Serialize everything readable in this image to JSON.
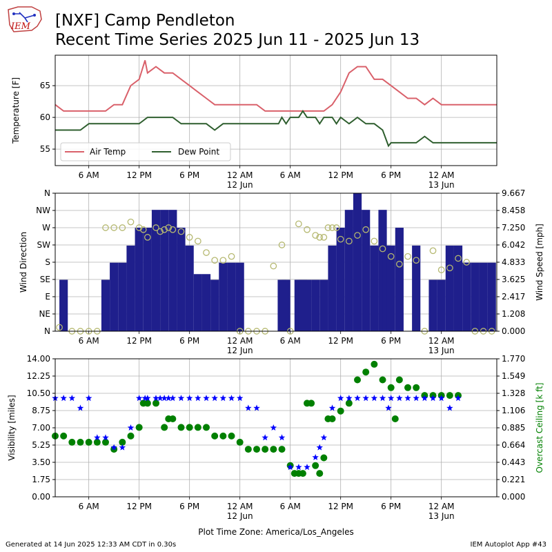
{
  "header": {
    "logo_text": "IEM",
    "title_line1": "[NXF] Camp Pendleton",
    "title_line2": "Recent Time Series 2025 Jun 11 - 2025 Jun 13"
  },
  "footer": {
    "left": "Generated at 14 Jun 2025 12:33 AM CDT in 0.30s",
    "right": "IEM Autoplot App #43",
    "timezone_label": "Plot Time Zone: America/Los_Angeles"
  },
  "x_axis": {
    "range": [
      2,
      54.6
    ],
    "ticks": [
      {
        "h": 6,
        "label": "6 AM",
        "sub": ""
      },
      {
        "h": 12,
        "label": "12 PM",
        "sub": ""
      },
      {
        "h": 18,
        "label": "6 PM",
        "sub": ""
      },
      {
        "h": 24,
        "label": "12 AM",
        "sub": "12 Jun"
      },
      {
        "h": 30,
        "label": "6 AM",
        "sub": ""
      },
      {
        "h": 36,
        "label": "12 PM",
        "sub": ""
      },
      {
        "h": 42,
        "label": "6 PM",
        "sub": ""
      },
      {
        "h": 48,
        "label": "12 AM",
        "sub": "13 Jun"
      }
    ],
    "unit_note": "x values are hours after 12 AM, 11 Jun 2025 (America/Los_Angeles)"
  },
  "colors": {
    "air_temp": "#d9606a",
    "dew_point": "#2e5e2e",
    "wind_speed": "#1f1f8c",
    "wind_dir": "#b5b870",
    "visibility": "#0000ff",
    "ceiling": "#008000"
  },
  "chart_data": [
    {
      "type": "line",
      "ylabel": "Temperature [F]",
      "ylim": [
        52.4,
        69.8
      ],
      "yticks": [
        55,
        60,
        65
      ],
      "grid": true,
      "legend_position": "lower-left",
      "series": [
        {
          "name": "Air Temp",
          "x": [
            2,
            3,
            4,
            5,
            6,
            7,
            8,
            9,
            10,
            11,
            12,
            12.7,
            13,
            14,
            15,
            16,
            17,
            18,
            19,
            20,
            21,
            22,
            23,
            24,
            25,
            26,
            27,
            28,
            29,
            30,
            31,
            32,
            33,
            34,
            35,
            36,
            37,
            38,
            39,
            40,
            41,
            42,
            43,
            44,
            45,
            46,
            47,
            48,
            49,
            50,
            51,
            52,
            53,
            54,
            54.6
          ],
          "y": [
            62,
            61,
            61,
            61,
            61,
            61,
            61,
            62,
            62,
            65,
            66,
            69,
            67,
            68,
            67,
            67,
            66,
            65,
            64,
            63,
            62,
            62,
            62,
            62,
            62,
            62,
            61,
            61,
            61,
            61,
            61,
            61,
            61,
            61,
            62,
            64,
            67,
            68,
            68,
            66,
            66,
            65,
            64,
            63,
            63,
            62,
            63,
            62,
            62,
            62,
            62,
            62,
            62,
            62,
            62
          ]
        },
        {
          "name": "Dew Point",
          "x": [
            2,
            3,
            4,
            5,
            6,
            7,
            8,
            9,
            10,
            11,
            12,
            13,
            14,
            15,
            16,
            17,
            18,
            19,
            20,
            21,
            22,
            23,
            24,
            25,
            26,
            27,
            28,
            28.6,
            29,
            29.5,
            30,
            31,
            31.5,
            32,
            33,
            33.5,
            34,
            35,
            35.5,
            36,
            37,
            38,
            39,
            40,
            41,
            41.7,
            42,
            43,
            44,
            45,
            46,
            47,
            48,
            49,
            50,
            51,
            52,
            53,
            54,
            54.6
          ],
          "y": [
            58,
            58,
            58,
            58,
            59,
            59,
            59,
            59,
            59,
            59,
            59,
            60,
            60,
            60,
            60,
            59,
            59,
            59,
            59,
            58,
            59,
            59,
            59,
            59,
            59,
            59,
            59,
            59,
            60,
            59,
            60,
            60,
            61,
            60,
            60,
            59,
            60,
            60,
            59,
            60,
            59,
            60,
            59,
            59,
            58,
            55.5,
            56,
            56,
            56,
            56,
            57,
            56,
            56,
            56,
            56,
            56,
            56,
            56,
            56,
            56
          ]
        }
      ]
    },
    {
      "type": "bar",
      "ylabel": "Wind Direction",
      "ylabel_right": "Wind Speed [mph]",
      "grid": true,
      "direction_ticks": [
        "N",
        "NE",
        "E",
        "SE",
        "S",
        "SW",
        "W",
        "NW",
        "N"
      ],
      "speed_ticks": [
        "0.000",
        "1.208",
        "2.417",
        "3.625",
        "4.833",
        "6.042",
        "7.250",
        "8.458",
        "9.667"
      ],
      "speed_ylim": [
        0,
        9.667
      ],
      "series": [
        {
          "name": "Wind Speed",
          "x": [
            3,
            6,
            7,
            8,
            9,
            10,
            11,
            12,
            13,
            14,
            15,
            16,
            17,
            18,
            19,
            20,
            21,
            22,
            23,
            24,
            25,
            26,
            27,
            28,
            29,
            29.5,
            30,
            31,
            31.5,
            32,
            33,
            34,
            35,
            36,
            37,
            38,
            39,
            40,
            41,
            41.5,
            42,
            43,
            44,
            45,
            46,
            47,
            48,
            49,
            50,
            51,
            52,
            53,
            54
          ],
          "y": [
            3.6,
            0,
            0,
            3.6,
            4.8,
            4.8,
            6.0,
            7.25,
            7.25,
            8.5,
            8.5,
            8.5,
            7.25,
            6.0,
            4.0,
            4.0,
            3.6,
            4.8,
            4.8,
            4.8,
            0,
            0,
            0,
            0,
            3.6,
            3.6,
            0,
            3.6,
            3.6,
            3.6,
            3.6,
            3.6,
            6.0,
            7.25,
            8.5,
            9.667,
            8.5,
            6.0,
            8.5,
            6.0,
            6.0,
            7.25,
            0,
            6.0,
            0,
            3.6,
            3.6,
            6.0,
            6.0,
            4.8,
            4.8,
            4.8,
            4.8
          ]
        },
        {
          "name": "Wind Direction",
          "x": [
            2.5,
            4,
            5,
            6,
            7,
            8,
            9,
            10,
            11,
            12,
            12.5,
            13,
            14,
            14.5,
            15,
            15.5,
            16,
            17,
            18,
            19,
            20,
            21,
            22,
            23,
            24,
            25,
            26,
            27,
            28,
            29,
            30,
            31,
            32,
            33,
            33.5,
            34,
            34.5,
            35,
            35.5,
            36,
            37,
            38,
            39,
            40,
            41,
            42,
            43,
            44,
            45,
            46,
            47,
            48,
            49,
            50,
            51,
            52,
            53,
            54
          ],
          "y": [
            10,
            0,
            0,
            0,
            0,
            270,
            270,
            270,
            285,
            270,
            265,
            245,
            270,
            260,
            265,
            270,
            265,
            260,
            245,
            235,
            205,
            185,
            185,
            195,
            0,
            0,
            0,
            0,
            170,
            225,
            0,
            280,
            265,
            250,
            245,
            245,
            270,
            270,
            270,
            240,
            235,
            250,
            265,
            235,
            215,
            195,
            175,
            195,
            185,
            0,
            210,
            160,
            165,
            190,
            180,
            0,
            0,
            0
          ]
        }
      ]
    },
    {
      "type": "scatter",
      "ylabel": "Visibility [miles]",
      "ylabel_right": "Overcast Ceiling [k ft]",
      "grid": true,
      "ylim": [
        0,
        14
      ],
      "yticks": [
        "0.00",
        "1.75",
        "3.50",
        "5.25",
        "7.00",
        "8.75",
        "10.50",
        "12.25",
        "14.00"
      ],
      "right_ylim": [
        0,
        1.77
      ],
      "right_yticks": [
        "0.000",
        "0.221",
        "0.443",
        "0.664",
        "0.885",
        "1.106",
        "1.328",
        "1.549",
        "1.770"
      ],
      "series": [
        {
          "name": "Visibility",
          "x": [
            2,
            3,
            4,
            5,
            6,
            7,
            8,
            9,
            10,
            11,
            12,
            12.7,
            13,
            14,
            14.5,
            15,
            15.5,
            16,
            17,
            18,
            19,
            20,
            21,
            22,
            23,
            24,
            25,
            26,
            27,
            28,
            29,
            30,
            31,
            32,
            33,
            33.5,
            34,
            35,
            36,
            37,
            38,
            39,
            40,
            41,
            41.7,
            42,
            43,
            44,
            45,
            46,
            47,
            48,
            49,
            50
          ],
          "y": [
            10,
            10,
            10,
            9,
            10,
            6,
            6,
            5,
            5,
            7,
            10,
            10,
            10,
            10,
            10,
            10,
            10,
            10,
            10,
            10,
            10,
            10,
            10,
            10,
            10,
            10,
            9,
            9,
            6,
            7,
            6,
            3,
            3,
            3,
            4,
            5,
            6,
            9,
            10,
            10,
            10,
            10,
            10,
            10,
            9,
            10,
            10,
            10,
            10,
            10,
            10,
            10,
            9,
            10
          ]
        },
        {
          "name": "Overcast Ceiling",
          "x": [
            2,
            3,
            4,
            5,
            6,
            7,
            8,
            9,
            10,
            11,
            12,
            12.5,
            13,
            14,
            15,
            15.5,
            16,
            17,
            18,
            19,
            20,
            21,
            22,
            23,
            24,
            25,
            26,
            27,
            28,
            29,
            30,
            30.5,
            31,
            31.5,
            32,
            32.5,
            33,
            33.5,
            34,
            34.5,
            35,
            36,
            37,
            38,
            39,
            40,
            41,
            42,
            42.5,
            43,
            44,
            45,
            46,
            47,
            48,
            49,
            50
          ],
          "y": [
            0.78,
            0.78,
            0.7,
            0.7,
            0.7,
            0.7,
            0.7,
            0.61,
            0.7,
            0.78,
            0.89,
            1.2,
            1.2,
            1.2,
            0.89,
            1.0,
            1.0,
            0.89,
            0.89,
            0.89,
            0.89,
            0.78,
            0.78,
            0.78,
            0.7,
            0.61,
            0.61,
            0.61,
            0.61,
            0.61,
            0.4,
            0.3,
            0.3,
            0.3,
            1.2,
            1.2,
            0.4,
            0.3,
            0.5,
            1.0,
            1.0,
            1.1,
            1.2,
            1.5,
            1.6,
            1.7,
            1.5,
            1.4,
            1.0,
            1.5,
            1.4,
            1.4,
            1.3,
            1.3,
            1.3,
            1.3,
            1.3
          ]
        }
      ]
    }
  ]
}
